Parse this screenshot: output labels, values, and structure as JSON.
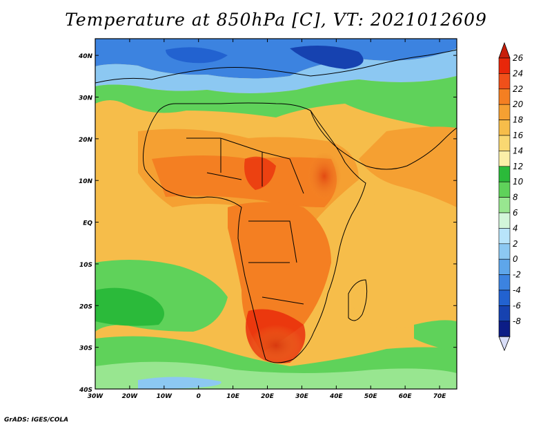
{
  "title": "Temperature at 850hPa [C], VT: 2021012609",
  "credit": "GrADS: IGES/COLA",
  "map": {
    "lat_ticks": [
      "40N",
      "30N",
      "20N",
      "10N",
      "EQ",
      "10S",
      "20S",
      "30S",
      "40S"
    ],
    "lon_ticks": [
      "30W",
      "20W",
      "10W",
      "0",
      "10E",
      "20E",
      "30E",
      "40E",
      "50E",
      "60E",
      "70E"
    ],
    "extent": {
      "lon": [
        -30,
        75
      ],
      "lat": [
        -40,
        44
      ]
    }
  },
  "colorbar": {
    "levels": [
      "26",
      "24",
      "22",
      "20",
      "18",
      "16",
      "14",
      "12",
      "10",
      "8",
      "6",
      "4",
      "2",
      "0",
      "-2",
      "-4",
      "-6",
      "-8"
    ],
    "colors": [
      "#e8270a",
      "#f0501a",
      "#f47f22",
      "#f5a032",
      "#f6bd4a",
      "#f9d872",
      "#fbefa8",
      "#2bba3a",
      "#5fd25a",
      "#98e690",
      "#d2f6da",
      "#b8e4fa",
      "#8cc8f2",
      "#5ea6ea",
      "#3c83e0",
      "#2262d0",
      "#1642b0",
      "#0c1d86"
    ],
    "top_color": "#c81e0a",
    "bottom_color": "#d9def8"
  }
}
